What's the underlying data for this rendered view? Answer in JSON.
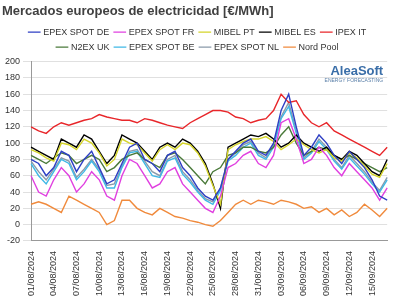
{
  "chart_data": {
    "type": "line",
    "title": "Mercados europeos de electricidad [€/MWh]",
    "annotations": [
      "AleaSoft",
      "ENERGY FORECASTING"
    ],
    "categories": [
      "01/08/2024",
      null,
      null,
      "04/08/2024",
      null,
      null,
      "07/08/2024",
      null,
      null,
      "10/08/2024",
      null,
      null,
      "13/08/2024",
      null,
      null,
      "16/08/2024",
      null,
      null,
      "19/08/2024",
      null,
      null,
      "22/08/2024",
      null,
      null,
      "25/08/2024",
      null,
      null,
      "28/08/2024",
      null,
      null,
      "31/08/2024",
      null,
      null,
      "03/09/2024",
      null,
      null,
      "06/09/2024",
      null,
      null,
      "09/09/2024",
      null,
      null,
      "12/09/2024",
      null,
      null,
      "15/09/2024",
      null,
      null
    ],
    "series": [
      {
        "name": "EPEX SPOT DE",
        "color": "#2e3fc4",
        "values": [
          80,
          75,
          60,
          70,
          90,
          85,
          65,
          80,
          90,
          70,
          50,
          55,
          75,
          95,
          100,
          80,
          75,
          65,
          85,
          90,
          70,
          60,
          45,
          35,
          30,
          45,
          80,
          90,
          100,
          105,
          90,
          85,
          100,
          140,
          160,
          120,
          85,
          95,
          110,
          100,
          85,
          75,
          90,
          80,
          70,
          55,
          35,
          30
        ]
      },
      {
        "name": "EPEX SPOT FR",
        "color": "#e040e0",
        "values": [
          60,
          40,
          35,
          55,
          70,
          60,
          40,
          50,
          65,
          55,
          35,
          30,
          60,
          80,
          75,
          60,
          45,
          50,
          65,
          70,
          50,
          40,
          30,
          20,
          15,
          35,
          70,
          75,
          85,
          90,
          75,
          70,
          85,
          125,
          130,
          105,
          75,
          80,
          95,
          85,
          70,
          60,
          75,
          65,
          55,
          45,
          30,
          45
        ]
      },
      {
        "name": "MIBEL PT",
        "color": "#d4d42a",
        "values": [
          92,
          88,
          82,
          78,
          100,
          98,
          92,
          105,
          100,
          88,
          72,
          80,
          105,
          100,
          98,
          88,
          78,
          92,
          98,
          92,
          100,
          98,
          88,
          72,
          48,
          25,
          92,
          98,
          102,
          105,
          105,
          108,
          102,
          92,
          98,
          105,
          98,
          92,
          88,
          92,
          82,
          78,
          88,
          82,
          72,
          62,
          58,
          75
        ]
      },
      {
        "name": "MIBEL ES",
        "color": "#000000",
        "values": [
          95,
          90,
          85,
          80,
          105,
          100,
          95,
          110,
          105,
          90,
          75,
          85,
          110,
          105,
          100,
          90,
          80,
          95,
          100,
          95,
          105,
          100,
          90,
          75,
          50,
          20,
          95,
          100,
          105,
          110,
          108,
          112,
          105,
          95,
          100,
          110,
          100,
          95,
          90,
          95,
          85,
          80,
          90,
          85,
          75,
          65,
          60,
          80
        ]
      },
      {
        "name": "IPEX IT",
        "color": "#e8262a",
        "values": [
          120,
          115,
          112,
          120,
          125,
          122,
          125,
          128,
          130,
          135,
          132,
          130,
          128,
          128,
          125,
          130,
          128,
          125,
          122,
          120,
          118,
          125,
          130,
          135,
          140,
          140,
          138,
          132,
          130,
          125,
          128,
          130,
          140,
          160,
          150,
          152,
          135,
          125,
          120,
          125,
          115,
          110,
          105,
          100,
          95,
          90,
          85,
          95
        ]
      },
      {
        "name": "N2EX UK",
        "color": "#4a7a3a",
        "values": [
          85,
          80,
          75,
          82,
          88,
          85,
          75,
          80,
          85,
          80,
          65,
          70,
          80,
          85,
          88,
          80,
          75,
          70,
          85,
          88,
          80,
          70,
          60,
          50,
          65,
          70,
          85,
          88,
          95,
          95,
          90,
          88,
          95,
          110,
          120,
          100,
          85,
          90,
          95,
          92,
          85,
          80,
          85,
          80,
          75,
          70,
          65,
          70
        ]
      },
      {
        "name": "EPEX SPOT BE",
        "color": "#3fb8e6",
        "values": [
          75,
          60,
          50,
          65,
          80,
          75,
          55,
          65,
          78,
          65,
          45,
          45,
          70,
          88,
          90,
          75,
          60,
          58,
          78,
          82,
          62,
          52,
          40,
          30,
          25,
          42,
          78,
          85,
          95,
          100,
          85,
          80,
          95,
          130,
          145,
          112,
          80,
          88,
          102,
          92,
          78,
          68,
          82,
          72,
          62,
          50,
          40,
          55
        ]
      },
      {
        "name": "EPEX SPOT NL",
        "color": "#8a9aaa",
        "values": [
          78,
          65,
          55,
          68,
          82,
          78,
          58,
          68,
          80,
          68,
          48,
          50,
          72,
          90,
          92,
          78,
          65,
          60,
          80,
          85,
          65,
          55,
          42,
          32,
          28,
          45,
          80,
          88,
          98,
          102,
          88,
          82,
          98,
          132,
          150,
          115,
          82,
          90,
          105,
          95,
          80,
          70,
          85,
          75,
          65,
          52,
          42,
          58
        ]
      },
      {
        "name": "Nord Pool",
        "color": "#f08a3c",
        "values": [
          25,
          28,
          25,
          20,
          15,
          35,
          30,
          25,
          20,
          15,
          0,
          5,
          30,
          30,
          20,
          15,
          12,
          20,
          15,
          10,
          8,
          5,
          3,
          0,
          -2,
          5,
          15,
          25,
          30,
          25,
          30,
          28,
          25,
          30,
          28,
          25,
          20,
          22,
          15,
          20,
          12,
          18,
          10,
          15,
          25,
          18,
          10,
          20
        ]
      }
    ],
    "ylim": [
      -20,
      200
    ],
    "yticks": [
      -20,
      0,
      20,
      40,
      60,
      80,
      100,
      120,
      140,
      160,
      180,
      200
    ],
    "grid": true,
    "legend": "top"
  }
}
